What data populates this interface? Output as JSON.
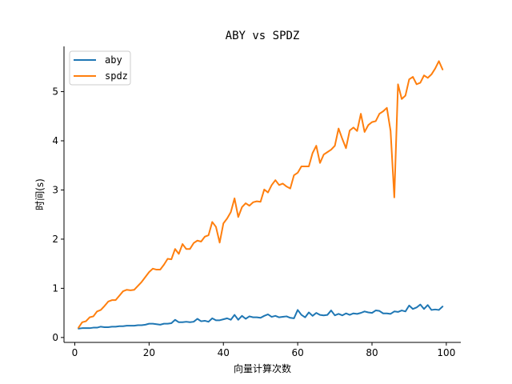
{
  "chart_data": {
    "type": "line",
    "title": "ABY vs SPDZ",
    "xlabel": "向量计算次数",
    "ylabel": "时间(s)",
    "xlim": [
      -2.9,
      103.9
    ],
    "ylim": [
      -0.1,
      5.92
    ],
    "xticks": [
      0,
      20,
      40,
      60,
      80,
      100
    ],
    "yticks": [
      0,
      1,
      2,
      3,
      4,
      5
    ],
    "grid": false,
    "legend": "top-left",
    "x": [
      1,
      2,
      3,
      4,
      5,
      6,
      7,
      8,
      9,
      10,
      11,
      12,
      13,
      14,
      15,
      16,
      17,
      18,
      19,
      20,
      21,
      22,
      23,
      24,
      25,
      26,
      27,
      28,
      29,
      30,
      31,
      32,
      33,
      34,
      35,
      36,
      37,
      38,
      39,
      40,
      41,
      42,
      43,
      44,
      45,
      46,
      47,
      48,
      49,
      50,
      51,
      52,
      53,
      54,
      55,
      56,
      57,
      58,
      59,
      60,
      61,
      62,
      63,
      64,
      65,
      66,
      67,
      68,
      69,
      70,
      71,
      72,
      73,
      74,
      75,
      76,
      77,
      78,
      79,
      80,
      81,
      82,
      83,
      84,
      85,
      86,
      87,
      88,
      89,
      90,
      91,
      92,
      93,
      94,
      95,
      96,
      97,
      98,
      99
    ],
    "series": [
      {
        "name": "aby",
        "color": "#1f77b4",
        "values": [
          0.18,
          0.19,
          0.19,
          0.19,
          0.2,
          0.2,
          0.22,
          0.21,
          0.21,
          0.22,
          0.22,
          0.23,
          0.23,
          0.24,
          0.24,
          0.24,
          0.25,
          0.25,
          0.26,
          0.28,
          0.28,
          0.27,
          0.26,
          0.28,
          0.28,
          0.29,
          0.36,
          0.31,
          0.31,
          0.32,
          0.31,
          0.32,
          0.38,
          0.33,
          0.34,
          0.32,
          0.39,
          0.35,
          0.35,
          0.37,
          0.39,
          0.36,
          0.46,
          0.36,
          0.44,
          0.38,
          0.43,
          0.41,
          0.41,
          0.4,
          0.44,
          0.47,
          0.42,
          0.44,
          0.41,
          0.42,
          0.43,
          0.4,
          0.39,
          0.56,
          0.46,
          0.41,
          0.51,
          0.44,
          0.5,
          0.46,
          0.45,
          0.46,
          0.55,
          0.45,
          0.48,
          0.45,
          0.49,
          0.46,
          0.49,
          0.48,
          0.5,
          0.53,
          0.51,
          0.5,
          0.55,
          0.54,
          0.49,
          0.49,
          0.48,
          0.53,
          0.52,
          0.55,
          0.53,
          0.65,
          0.58,
          0.61,
          0.67,
          0.58,
          0.66,
          0.56,
          0.57,
          0.56,
          0.63
        ]
      },
      {
        "name": "spdz",
        "color": "#ff7f0e",
        "values": [
          0.2,
          0.31,
          0.33,
          0.41,
          0.43,
          0.53,
          0.56,
          0.64,
          0.73,
          0.76,
          0.76,
          0.85,
          0.94,
          0.97,
          0.96,
          0.97,
          1.05,
          1.13,
          1.23,
          1.33,
          1.4,
          1.38,
          1.38,
          1.48,
          1.6,
          1.59,
          1.8,
          1.7,
          1.9,
          1.8,
          1.8,
          1.92,
          1.97,
          1.95,
          2.05,
          2.08,
          2.35,
          2.25,
          1.93,
          2.32,
          2.42,
          2.55,
          2.83,
          2.45,
          2.65,
          2.73,
          2.68,
          2.75,
          2.77,
          2.76,
          3.01,
          2.95,
          3.1,
          3.2,
          3.1,
          3.13,
          3.07,
          3.03,
          3.3,
          3.35,
          3.48,
          3.48,
          3.48,
          3.75,
          3.9,
          3.55,
          3.72,
          3.77,
          3.82,
          3.9,
          4.25,
          4.04,
          3.85,
          4.21,
          4.27,
          4.2,
          4.55,
          4.18,
          4.32,
          4.38,
          4.4,
          4.55,
          4.6,
          4.67,
          4.2,
          2.85,
          5.15,
          4.85,
          4.92,
          5.25,
          5.3,
          5.15,
          5.18,
          5.33,
          5.28,
          5.35,
          5.47,
          5.62,
          5.45
        ]
      }
    ]
  }
}
